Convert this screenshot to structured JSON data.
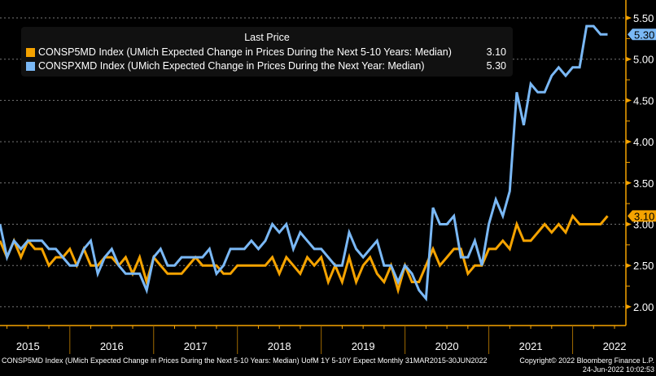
{
  "chart_data": {
    "type": "line",
    "title": "",
    "xlabel": "",
    "ylabel": "",
    "ylim": [
      1.8,
      5.6
    ],
    "y_ticks": [
      "2.00",
      "2.50",
      "3.00",
      "3.50",
      "4.00",
      "4.50",
      "5.00",
      "5.50"
    ],
    "y_tick_values": [
      2.0,
      2.5,
      3.0,
      3.5,
      4.0,
      4.5,
      5.0,
      5.5
    ],
    "x_start": "Mar 2015",
    "x_end": "Jun 2022",
    "frequency": "Monthly",
    "year_labels": [
      "2015",
      "2016",
      "2017",
      "2018",
      "2019",
      "2020",
      "2021",
      "2022"
    ],
    "grid": true,
    "legend_position": "top-left",
    "legend_title": "Last Price",
    "series": [
      {
        "name": "CONSP5MD Index (UMich Expected Change in Prices During the Next 5-10 Years: Median)",
        "last": "3.10",
        "color": "#f5a300",
        "values": [
          2.8,
          2.6,
          2.8,
          2.6,
          2.8,
          2.7,
          2.7,
          2.5,
          2.6,
          2.6,
          2.7,
          2.5,
          2.7,
          2.5,
          2.5,
          2.6,
          2.6,
          2.5,
          2.6,
          2.4,
          2.6,
          2.3,
          2.6,
          2.5,
          2.4,
          2.4,
          2.4,
          2.5,
          2.6,
          2.5,
          2.5,
          2.5,
          2.4,
          2.4,
          2.5,
          2.5,
          2.5,
          2.5,
          2.5,
          2.6,
          2.4,
          2.6,
          2.5,
          2.4,
          2.6,
          2.5,
          2.6,
          2.3,
          2.5,
          2.3,
          2.6,
          2.3,
          2.5,
          2.6,
          2.4,
          2.3,
          2.5,
          2.2,
          2.5,
          2.3,
          2.3,
          2.5,
          2.7,
          2.5,
          2.6,
          2.7,
          2.7,
          2.4,
          2.5,
          2.5,
          2.7,
          2.7,
          2.8,
          2.7,
          3.0,
          2.8,
          2.8,
          2.9,
          3.0,
          2.9,
          3.0,
          2.9,
          3.1,
          3.0,
          3.0,
          3.0,
          3.0,
          3.1
        ]
      },
      {
        "name": "CONSPXMD Index (UMich Expected Change in Prices During the Next Year: Median)",
        "last": "5.30",
        "color": "#7ab8f5",
        "values": [
          3.0,
          2.6,
          2.8,
          2.7,
          2.8,
          2.8,
          2.8,
          2.7,
          2.7,
          2.6,
          2.5,
          2.5,
          2.7,
          2.8,
          2.4,
          2.6,
          2.7,
          2.5,
          2.4,
          2.4,
          2.4,
          2.2,
          2.6,
          2.7,
          2.5,
          2.5,
          2.6,
          2.6,
          2.6,
          2.6,
          2.7,
          2.4,
          2.5,
          2.7,
          2.7,
          2.7,
          2.8,
          2.7,
          2.8,
          3.0,
          2.9,
          3.0,
          2.7,
          2.9,
          2.8,
          2.7,
          2.7,
          2.6,
          2.5,
          2.5,
          2.9,
          2.7,
          2.6,
          2.7,
          2.8,
          2.5,
          2.5,
          2.3,
          2.5,
          2.4,
          2.2,
          2.1,
          3.2,
          3.0,
          3.0,
          3.1,
          2.6,
          2.6,
          2.8,
          2.5,
          3.0,
          3.3,
          3.1,
          3.4,
          4.6,
          4.2,
          4.7,
          4.6,
          4.6,
          4.8,
          4.9,
          4.8,
          4.9,
          4.9,
          5.4,
          5.4,
          5.3,
          5.3
        ]
      }
    ]
  },
  "legend": {
    "title": "Last Price",
    "items": [
      {
        "label": "CONSP5MD Index (UMich Expected Change in Prices During the Next 5-10 Years: Median)",
        "value": "3.10",
        "color": "#f5a300"
      },
      {
        "label": "CONSPXMD Index (UMich Expected Change in Prices During the Next Year: Median)",
        "value": "5.30",
        "color": "#7ab8f5"
      }
    ]
  },
  "footer": {
    "description": "CONSP5MD Index (UMich Expected Change in Prices During the Next 5-10 Years: Median) UofM 1Y 5-10Y Expect  Monthly 31MAR2015-30JUN2022",
    "copyright": "Copyright© 2022 Bloomberg Finance L.P.",
    "timestamp": "24-Jun-2022 10:02:53"
  },
  "colors": {
    "background": "#000000",
    "axis": "#f5a300",
    "grid": "#777777",
    "orange_series": "#f5a300",
    "blue_series": "#7ab8f5"
  }
}
